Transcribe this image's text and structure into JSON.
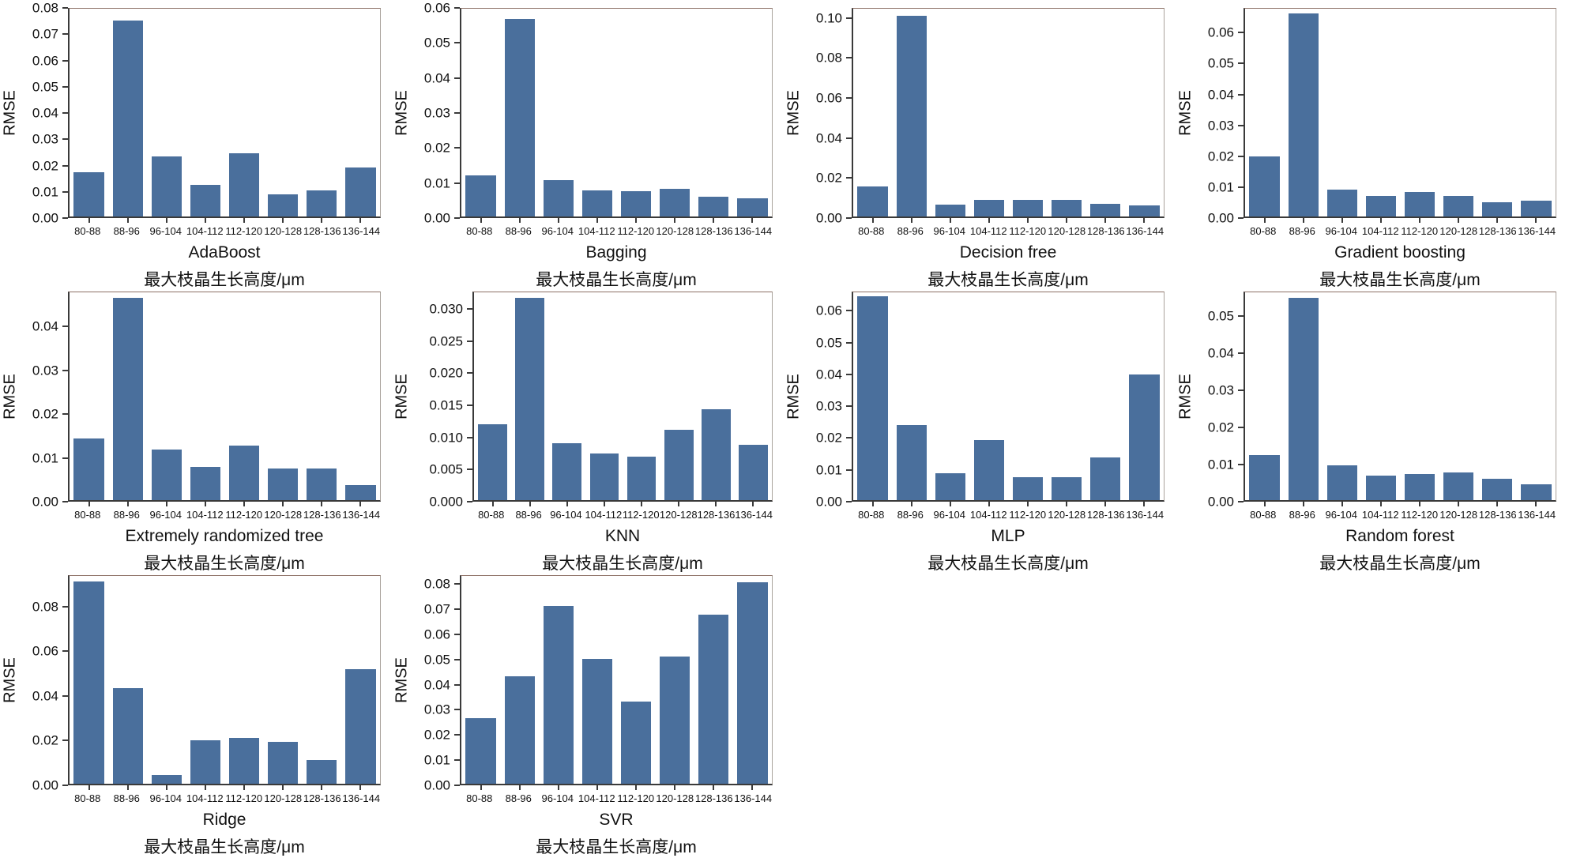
{
  "figure": {
    "background": "#ffffff",
    "bar_color": "#4a6f9c",
    "axis_color": "#3a3a3a",
    "grid_columns": 4
  },
  "chart_data": [
    {
      "type": "bar",
      "title": "AdaBoost",
      "xlabel": "最大枝晶生长高度/μm",
      "ylabel": "RMSE",
      "categories": [
        "80-88",
        "88-96",
        "96-104",
        "104-112",
        "112-120",
        "120-128",
        "128-136",
        "136-144"
      ],
      "values": [
        0.017,
        0.0755,
        0.023,
        0.0122,
        0.0242,
        0.0085,
        0.0099,
        0.0188
      ],
      "ylim": [
        0,
        0.08
      ],
      "yticks": [
        0,
        0.01,
        0.02,
        0.03,
        0.04,
        0.05,
        0.06,
        0.07,
        0.08
      ],
      "ytick_decimals": 2,
      "grid": false,
      "legend": null
    },
    {
      "type": "bar",
      "title": "Bagging",
      "xlabel": "最大枝晶生长高度/μm",
      "ylabel": "RMSE",
      "categories": [
        "80-88",
        "88-96",
        "96-104",
        "104-112",
        "112-120",
        "120-128",
        "128-136",
        "136-144"
      ],
      "values": [
        0.0118,
        0.057,
        0.0104,
        0.0075,
        0.0073,
        0.008,
        0.0056,
        0.0053
      ],
      "ylim": [
        0,
        0.06
      ],
      "yticks": [
        0,
        0.01,
        0.02,
        0.03,
        0.04,
        0.05,
        0.06
      ],
      "ytick_decimals": 2,
      "grid": false,
      "legend": null
    },
    {
      "type": "bar",
      "title": "Decision free",
      "xlabel": "最大枝晶生长高度/μm",
      "ylabel": "RMSE",
      "categories": [
        "80-88",
        "88-96",
        "96-104",
        "104-112",
        "112-120",
        "120-128",
        "128-136",
        "136-144"
      ],
      "values": [
        0.0152,
        0.1015,
        0.0058,
        0.0084,
        0.0084,
        0.0084,
        0.0063,
        0.0054
      ],
      "ylim": [
        0,
        0.105
      ],
      "yticks": [
        0,
        0.02,
        0.04,
        0.06,
        0.08,
        0.1
      ],
      "ytick_decimals": 2,
      "grid": false,
      "legend": null
    },
    {
      "type": "bar",
      "title": "Gradient boosting",
      "xlabel": "最大枝晶生长高度/μm",
      "ylabel": "RMSE",
      "categories": [
        "80-88",
        "88-96",
        "96-104",
        "104-112",
        "112-120",
        "120-128",
        "128-136",
        "136-144"
      ],
      "values": [
        0.0196,
        0.0665,
        0.0089,
        0.0068,
        0.008,
        0.0068,
        0.0046,
        0.0051
      ],
      "ylim": [
        0,
        0.068
      ],
      "yticks": [
        0,
        0.01,
        0.02,
        0.03,
        0.04,
        0.05,
        0.06
      ],
      "ytick_decimals": 2,
      "grid": false,
      "legend": null
    },
    {
      "type": "bar",
      "title": "Extremely randomized tree",
      "xlabel": "最大枝晶生长高度/μm",
      "ylabel": "RMSE",
      "categories": [
        "80-88",
        "88-96",
        "96-104",
        "104-112",
        "112-120",
        "120-128",
        "128-136",
        "136-144"
      ],
      "values": [
        0.0142,
        0.0467,
        0.0116,
        0.0077,
        0.0126,
        0.0073,
        0.0073,
        0.0035
      ],
      "ylim": [
        0,
        0.048
      ],
      "yticks": [
        0,
        0.01,
        0.02,
        0.03,
        0.04
      ],
      "ytick_decimals": 2,
      "grid": false,
      "legend": null
    },
    {
      "type": "bar",
      "title": "KNN",
      "xlabel": "最大枝晶生长高度/μm",
      "ylabel": "RMSE",
      "categories": [
        "80-88",
        "88-96",
        "96-104",
        "104-112",
        "112-120",
        "120-128",
        "128-136",
        "136-144"
      ],
      "values": [
        0.012,
        0.0318,
        0.0089,
        0.0073,
        0.0068,
        0.0111,
        0.0143,
        0.0087
      ],
      "ylim": [
        0,
        0.0327
      ],
      "yticks": [
        0,
        0.005,
        0.01,
        0.015,
        0.02,
        0.025,
        0.03
      ],
      "ytick_decimals": 3,
      "grid": false,
      "legend": null
    },
    {
      "type": "bar",
      "title": "MLP",
      "xlabel": "最大枝晶生长高度/μm",
      "ylabel": "RMSE",
      "categories": [
        "80-88",
        "88-96",
        "96-104",
        "104-112",
        "112-120",
        "120-128",
        "128-136",
        "136-144"
      ],
      "values": [
        0.0648,
        0.0238,
        0.0085,
        0.019,
        0.0073,
        0.0073,
        0.0136,
        0.0399
      ],
      "ylim": [
        0,
        0.066
      ],
      "yticks": [
        0,
        0.01,
        0.02,
        0.03,
        0.04,
        0.05,
        0.06
      ],
      "ytick_decimals": 2,
      "grid": false,
      "legend": null
    },
    {
      "type": "bar",
      "title": "Random forest",
      "xlabel": "最大枝晶生长高度/μm",
      "ylabel": "RMSE",
      "categories": [
        "80-88",
        "88-96",
        "96-104",
        "104-112",
        "112-120",
        "120-128",
        "128-136",
        "136-144"
      ],
      "values": [
        0.0122,
        0.0549,
        0.0094,
        0.0067,
        0.0071,
        0.0076,
        0.0057,
        0.0044
      ],
      "ylim": [
        0,
        0.0565
      ],
      "yticks": [
        0,
        0.01,
        0.02,
        0.03,
        0.04,
        0.05
      ],
      "ytick_decimals": 2,
      "grid": false,
      "legend": null
    },
    {
      "type": "bar",
      "title": "Ridge",
      "xlabel": "最大枝晶生长高度/μm",
      "ylabel": "RMSE",
      "categories": [
        "80-88",
        "88-96",
        "96-104",
        "104-112",
        "112-120",
        "120-128",
        "128-136",
        "136-144"
      ],
      "values": [
        0.0915,
        0.0432,
        0.0039,
        0.0198,
        0.0206,
        0.0189,
        0.0109,
        0.0518
      ],
      "ylim": [
        0,
        0.094
      ],
      "yticks": [
        0,
        0.02,
        0.04,
        0.06,
        0.08
      ],
      "ytick_decimals": 2,
      "grid": false,
      "legend": null
    },
    {
      "type": "bar",
      "title": "SVR",
      "xlabel": "最大枝晶生长高度/μm",
      "ylabel": "RMSE",
      "categories": [
        "80-88",
        "88-96",
        "96-104",
        "104-112",
        "112-120",
        "120-128",
        "128-136",
        "136-144"
      ],
      "values": [
        0.0263,
        0.0432,
        0.0714,
        0.0502,
        0.0331,
        0.0512,
        0.0679,
        0.081
      ],
      "ylim": [
        0,
        0.0835
      ],
      "yticks": [
        0,
        0.01,
        0.02,
        0.03,
        0.04,
        0.05,
        0.06,
        0.07,
        0.08
      ],
      "ytick_decimals": 2,
      "grid": false,
      "legend": null
    }
  ]
}
